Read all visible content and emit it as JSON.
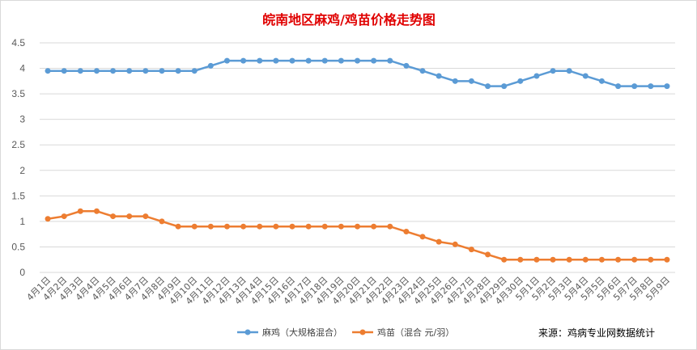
{
  "chart_data": {
    "type": "line",
    "title": "皖南地区麻鸡/鸡苗价格走势图",
    "xlabel": "",
    "ylabel": "",
    "ylim": [
      0,
      4.5
    ],
    "yticks": [
      "0",
      "0.5",
      "1",
      "1.5",
      "2",
      "2.5",
      "3",
      "3.5",
      "4",
      "4.5"
    ],
    "grid": true,
    "legend_position": "bottom",
    "categories": [
      "4月1日",
      "4月2日",
      "4月3日",
      "4月4日",
      "4月5日",
      "4月6日",
      "4月7日",
      "4月8日",
      "4月9日",
      "4月10日",
      "4月11日",
      "4月12日",
      "4月13日",
      "4月14日",
      "4月15日",
      "4月16日",
      "4月17日",
      "4月18日",
      "4月19日",
      "4月20日",
      "4月21日",
      "4月22日",
      "4月23日",
      "4月24日",
      "4月25日",
      "4月26日",
      "4月27日",
      "4月28日",
      "4月29日",
      "4月30日",
      "5月1日",
      "5月2日",
      "5月3日",
      "5月4日",
      "5月5日",
      "5月6日",
      "5月7日",
      "5月8日",
      "5月9日"
    ],
    "series": [
      {
        "name": "麻鸡（大规格混合）",
        "color": "#5b9bd5",
        "values": [
          3.95,
          3.95,
          3.95,
          3.95,
          3.95,
          3.95,
          3.95,
          3.95,
          3.95,
          3.95,
          4.05,
          4.15,
          4.15,
          4.15,
          4.15,
          4.15,
          4.15,
          4.15,
          4.15,
          4.15,
          4.15,
          4.15,
          4.05,
          3.95,
          3.85,
          3.75,
          3.75,
          3.65,
          3.65,
          3.75,
          3.85,
          3.95,
          3.95,
          3.85,
          3.75,
          3.65,
          3.65,
          3.65,
          3.65
        ]
      },
      {
        "name": "鸡苗（混合 元/羽）",
        "color": "#ed7d31",
        "values": [
          1.05,
          1.1,
          1.2,
          1.2,
          1.1,
          1.1,
          1.1,
          1.0,
          0.9,
          0.9,
          0.9,
          0.9,
          0.9,
          0.9,
          0.9,
          0.9,
          0.9,
          0.9,
          0.9,
          0.9,
          0.9,
          0.9,
          0.8,
          0.7,
          0.6,
          0.55,
          0.45,
          0.35,
          0.25,
          0.25,
          0.25,
          0.25,
          0.25,
          0.25,
          0.25,
          0.25,
          0.25,
          0.25,
          0.25
        ]
      }
    ],
    "source_note": "来源：鸡病专业网数据统计"
  }
}
